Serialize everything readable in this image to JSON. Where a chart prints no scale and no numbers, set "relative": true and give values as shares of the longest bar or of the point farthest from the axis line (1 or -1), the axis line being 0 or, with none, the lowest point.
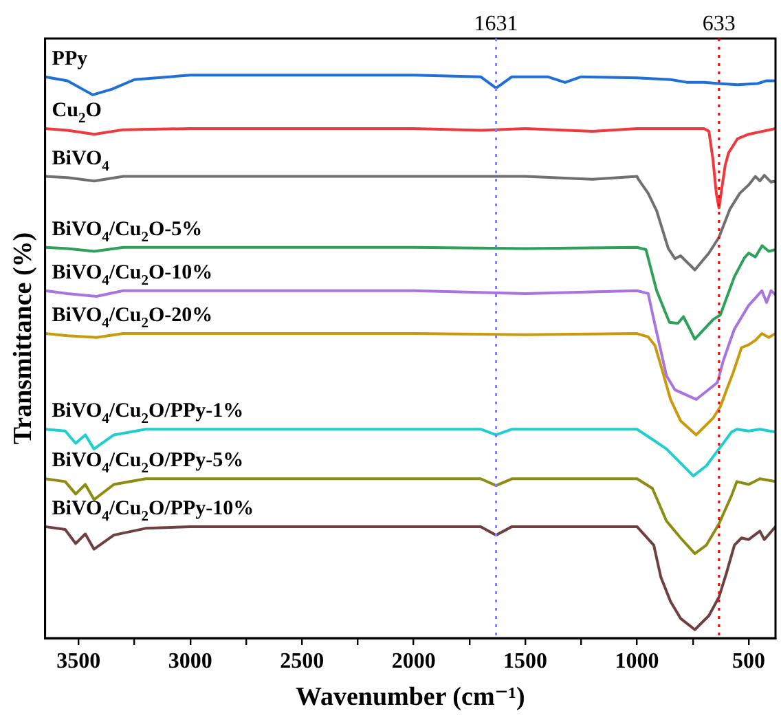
{
  "chart_data": {
    "type": "line",
    "relative": true,
    "xlabel": "Wavenumber (cm⁻¹)",
    "ylabel": "Transmittance (%)",
    "xlim": [
      3650,
      380
    ],
    "xticks": [
      3500,
      {
        "value": 3250,
        "label": null
      },
      3000,
      {
        "value": 2750,
        "label": null
      },
      2500,
      {
        "value": 2250,
        "label": null
      },
      2000,
      {
        "value": 1750,
        "label": null
      },
      1500,
      {
        "value": 1250,
        "label": null
      },
      1000,
      {
        "value": 750,
        "label": null
      },
      500
    ],
    "legend": false,
    "grid": false,
    "line_style": "solid",
    "marker": "none",
    "ref_lines": [
      {
        "axis": "x",
        "value": 1631,
        "label": "1631",
        "color": "#8080ff",
        "line_style": "dotted"
      },
      {
        "axis": "x",
        "value": 633,
        "label": "633",
        "color": "#ff0000",
        "line_style": "dotted"
      }
    ],
    "series": [
      {
        "name": "PPy",
        "color": "#1f6fd6",
        "x": [
          3650,
          3550,
          3437,
          3350,
          3250,
          3000,
          2500,
          2000,
          1700,
          1631,
          1560,
          1400,
          1322,
          1250,
          1000,
          850,
          773,
          700,
          633,
          550,
          460,
          420,
          380
        ],
        "values": [
          0.997,
          0.99,
          0.965,
          0.975,
          0.992,
          1.0,
          1.0,
          1.0,
          0.997,
          0.977,
          0.997,
          0.997,
          0.987,
          0.997,
          0.995,
          0.992,
          0.987,
          0.987,
          0.985,
          0.983,
          0.985,
          0.99,
          0.99
        ]
      },
      {
        "name": "Cu$_{2}$O",
        "color": "#f0393c",
        "x": [
          3650,
          3550,
          3430,
          3300,
          3000,
          2500,
          2000,
          1700,
          1500,
          1200,
          1000,
          800,
          700,
          678,
          660,
          645,
          633,
          620,
          605,
          590,
          550,
          500,
          440,
          380
        ],
        "values": [
          0.905,
          0.902,
          0.895,
          0.903,
          0.905,
          0.905,
          0.905,
          0.902,
          0.905,
          0.9,
          0.905,
          0.905,
          0.905,
          0.9,
          0.85,
          0.79,
          0.764,
          0.8,
          0.84,
          0.862,
          0.887,
          0.895,
          0.9,
          0.905
        ]
      },
      {
        "name": "BiVO$_{4}$",
        "color": "#707070",
        "x": [
          3650,
          3550,
          3430,
          3300,
          3000,
          2500,
          2000,
          1500,
          1200,
          1000,
          994,
          950,
          912,
          860,
          830,
          805,
          741,
          678,
          633,
          584,
          540,
          500,
          470,
          450,
          430,
          400,
          380
        ],
        "values": [
          0.82,
          0.818,
          0.812,
          0.82,
          0.82,
          0.82,
          0.82,
          0.82,
          0.815,
          0.82,
          0.815,
          0.79,
          0.759,
          0.692,
          0.674,
          0.679,
          0.654,
          0.684,
          0.712,
          0.762,
          0.79,
          0.805,
          0.82,
          0.812,
          0.822,
          0.81,
          0.812
        ]
      },
      {
        "name": "BiVO$_{4}$/Cu$_{2}$O-5%",
        "color": "#2da05a",
        "x": [
          3650,
          3550,
          3430,
          3300,
          3000,
          2500,
          2000,
          1500,
          1000,
          960,
          912,
          855,
          817,
          792,
          741,
          659,
          627,
          564,
          520,
          500,
          470,
          440,
          410,
          380
        ],
        "values": [
          0.694,
          0.692,
          0.687,
          0.694,
          0.694,
          0.694,
          0.694,
          0.692,
          0.694,
          0.69,
          0.617,
          0.561,
          0.559,
          0.571,
          0.531,
          0.566,
          0.574,
          0.642,
          0.675,
          0.684,
          0.677,
          0.697,
          0.687,
          0.69
        ]
      },
      {
        "name": "BiVO$_{4}$/Cu$_{2}$O-10%",
        "color": "#a875e0",
        "x": [
          3650,
          3550,
          3420,
          3300,
          3000,
          2500,
          2000,
          1500,
          1000,
          950,
          925,
          868,
          830,
          735,
          640,
          615,
          590,
          564,
          500,
          470,
          441,
          420,
          400,
          380
        ],
        "values": [
          0.617,
          0.612,
          0.607,
          0.617,
          0.617,
          0.617,
          0.617,
          0.612,
          0.617,
          0.612,
          0.566,
          0.466,
          0.441,
          0.424,
          0.454,
          0.491,
          0.52,
          0.549,
          0.591,
          0.604,
          0.617,
          0.596,
          0.617,
          0.61
        ]
      },
      {
        "name": "BiVO$_{4}$/Cu$_{2}$O-20%",
        "color": "#c89a10",
        "x": [
          3650,
          3550,
          3420,
          3300,
          3000,
          2500,
          2000,
          1500,
          1000,
          950,
          920,
          893,
          850,
          805,
          735,
          659,
          627,
          600,
          570,
          532,
          500,
          470,
          441,
          410,
          380
        ],
        "values": [
          0.541,
          0.537,
          0.534,
          0.541,
          0.541,
          0.541,
          0.541,
          0.539,
          0.541,
          0.535,
          0.52,
          0.484,
          0.424,
          0.386,
          0.361,
          0.391,
          0.411,
          0.44,
          0.471,
          0.516,
          0.521,
          0.529,
          0.541,
          0.534,
          0.541
        ]
      },
      {
        "name": "BiVO$_{4}$/Cu$_{2}$O/PPy-1%",
        "color": "#1fcfd0",
        "x": [
          3650,
          3560,
          3513,
          3470,
          3431,
          3342,
          3200,
          3000,
          2500,
          2000,
          1700,
          1631,
          1560,
          1000,
          931,
          868,
          805,
          748,
          690,
          633,
          577,
          553,
          500,
          450,
          380
        ],
        "values": [
          0.371,
          0.368,
          0.346,
          0.361,
          0.336,
          0.361,
          0.371,
          0.371,
          0.371,
          0.371,
          0.371,
          0.361,
          0.371,
          0.371,
          0.353,
          0.336,
          0.311,
          0.288,
          0.306,
          0.336,
          0.366,
          0.371,
          0.368,
          0.371,
          0.366
        ]
      },
      {
        "name": "BiVO$_{4}$/Cu$_{2}$O/PPy-5%",
        "color": "#8c8c10",
        "x": [
          3650,
          3560,
          3513,
          3470,
          3431,
          3342,
          3200,
          3000,
          2500,
          2000,
          1700,
          1631,
          1560,
          1000,
          931,
          868,
          805,
          741,
          690,
          633,
          577,
          553,
          500,
          450,
          380
        ],
        "values": [
          0.283,
          0.278,
          0.256,
          0.273,
          0.246,
          0.273,
          0.283,
          0.283,
          0.283,
          0.283,
          0.283,
          0.271,
          0.283,
          0.283,
          0.266,
          0.208,
          0.178,
          0.15,
          0.165,
          0.203,
          0.253,
          0.278,
          0.273,
          0.283,
          0.278
        ]
      },
      {
        "name": "BiVO$_{4}$/Cu$_{2}$O/PPy-10%",
        "color": "#6e4040",
        "x": [
          3650,
          3560,
          3513,
          3470,
          3431,
          3342,
          3200,
          3000,
          2500,
          2000,
          1700,
          1631,
          1560,
          1000,
          925,
          893,
          850,
          805,
          741,
          678,
          633,
          600,
          564,
          532,
          500,
          450,
          430,
          380
        ],
        "values": [
          0.198,
          0.193,
          0.168,
          0.185,
          0.158,
          0.183,
          0.195,
          0.198,
          0.198,
          0.198,
          0.198,
          0.183,
          0.198,
          0.198,
          0.165,
          0.108,
          0.065,
          0.035,
          0.015,
          0.04,
          0.073,
          0.115,
          0.165,
          0.178,
          0.175,
          0.19,
          0.175,
          0.198
        ]
      }
    ]
  }
}
